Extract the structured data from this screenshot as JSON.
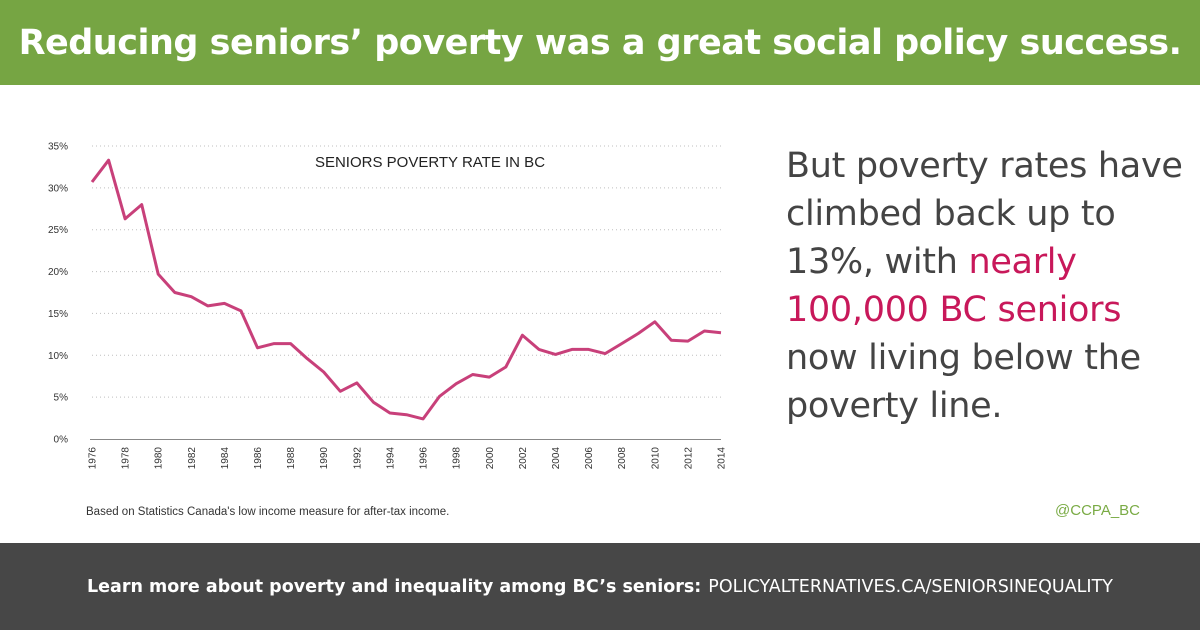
{
  "header": {
    "title": "Reducing seniors’ poverty was a great social policy success."
  },
  "chart_data": {
    "type": "line",
    "title": "SENIORS POVERTY RATE IN BC",
    "xlabel": "",
    "ylabel": "",
    "ylim": [
      0,
      35
    ],
    "yticks": [
      "0%",
      "5%",
      "10%",
      "15%",
      "20%",
      "25%",
      "30%",
      "35%"
    ],
    "xlim": [
      1976,
      2014
    ],
    "xticks": [
      "1976",
      "1978",
      "1980",
      "1982",
      "1984",
      "1986",
      "1988",
      "1990",
      "1992",
      "1994",
      "1996",
      "1998",
      "2000",
      "2002",
      "2004",
      "2006",
      "2008",
      "2010",
      "2012",
      "2014"
    ],
    "grid": true,
    "line_color": "#c8407a",
    "x": [
      1976,
      1977,
      1978,
      1979,
      1980,
      1981,
      1982,
      1983,
      1984,
      1985,
      1986,
      1987,
      1988,
      1989,
      1990,
      1991,
      1992,
      1993,
      1994,
      1995,
      1996,
      1997,
      1998,
      1999,
      2000,
      2001,
      2002,
      2003,
      2004,
      2005,
      2006,
      2007,
      2008,
      2009,
      2010,
      2011,
      2012,
      2013,
      2014
    ],
    "series": [
      {
        "values": [
          30.7,
          33.3,
          26.3,
          28.0,
          19.7,
          17.5,
          17.0,
          15.9,
          16.2,
          15.3,
          10.9,
          11.4,
          11.4,
          9.6,
          8.0,
          5.7,
          6.7,
          4.4,
          3.1,
          2.9,
          2.4,
          5.1,
          6.6,
          7.7,
          7.4,
          8.6,
          12.4,
          10.7,
          10.1,
          10.7,
          10.7,
          10.2,
          11.4,
          12.6,
          14.0,
          11.8,
          11.7,
          12.9,
          12.7
        ]
      }
    ]
  },
  "right_text": {
    "part1": "But poverty rates have climbed back up to 13%, with",
    "highlight": "nearly 100,000 BC seniors",
    "part2": "now living below the poverty line."
  },
  "footnote": "Based on Statistics Canada's low income measure for after-tax income.",
  "handle": "@CCPA_BC",
  "footer": {
    "lead": "Learn more about poverty and inequality among BC’s seniors:",
    "url": "POLICYALTERNATIVES.CA/SENIORSINEQUALITY"
  },
  "colors": {
    "header_bg": "#76a543",
    "footer_bg": "#474747",
    "highlight": "#c8185a",
    "line": "#c8407a"
  }
}
